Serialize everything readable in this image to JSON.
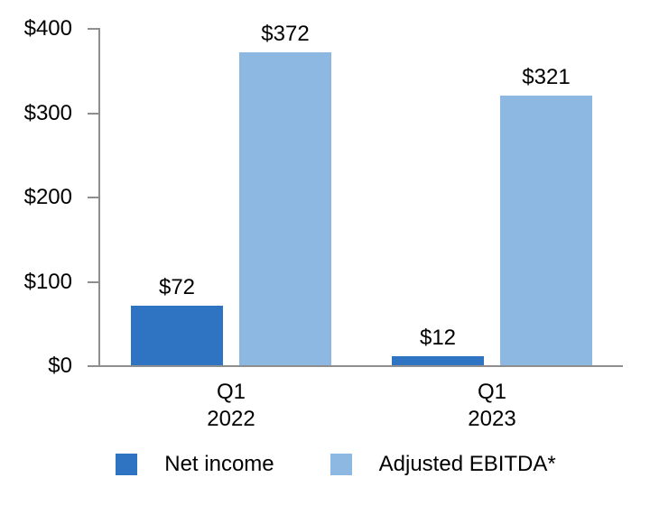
{
  "chart_data": {
    "type": "bar",
    "title": "",
    "categories": [
      "Q1\n2022",
      "Q1\n2023"
    ],
    "series": [
      {
        "name": "Net income",
        "color": "#2E74C3",
        "values": [
          72,
          12
        ],
        "labels": [
          "$72",
          "$12"
        ]
      },
      {
        "name": "Adjusted EBITDA*",
        "color": "#8CB8E2",
        "values": [
          372,
          321
        ],
        "labels": [
          "$372",
          "$321"
        ]
      }
    ],
    "y_axis": {
      "min": 0,
      "max": 400,
      "ticks": [
        {
          "value": 400,
          "label": "$400"
        },
        {
          "value": 300,
          "label": "$300"
        },
        {
          "value": 200,
          "label": "$200"
        },
        {
          "value": 100,
          "label": "$100"
        },
        {
          "value": 0,
          "label": "$0"
        }
      ]
    },
    "axis_color": "#8E8E8E",
    "grid": false,
    "legend_position": "bottom"
  }
}
